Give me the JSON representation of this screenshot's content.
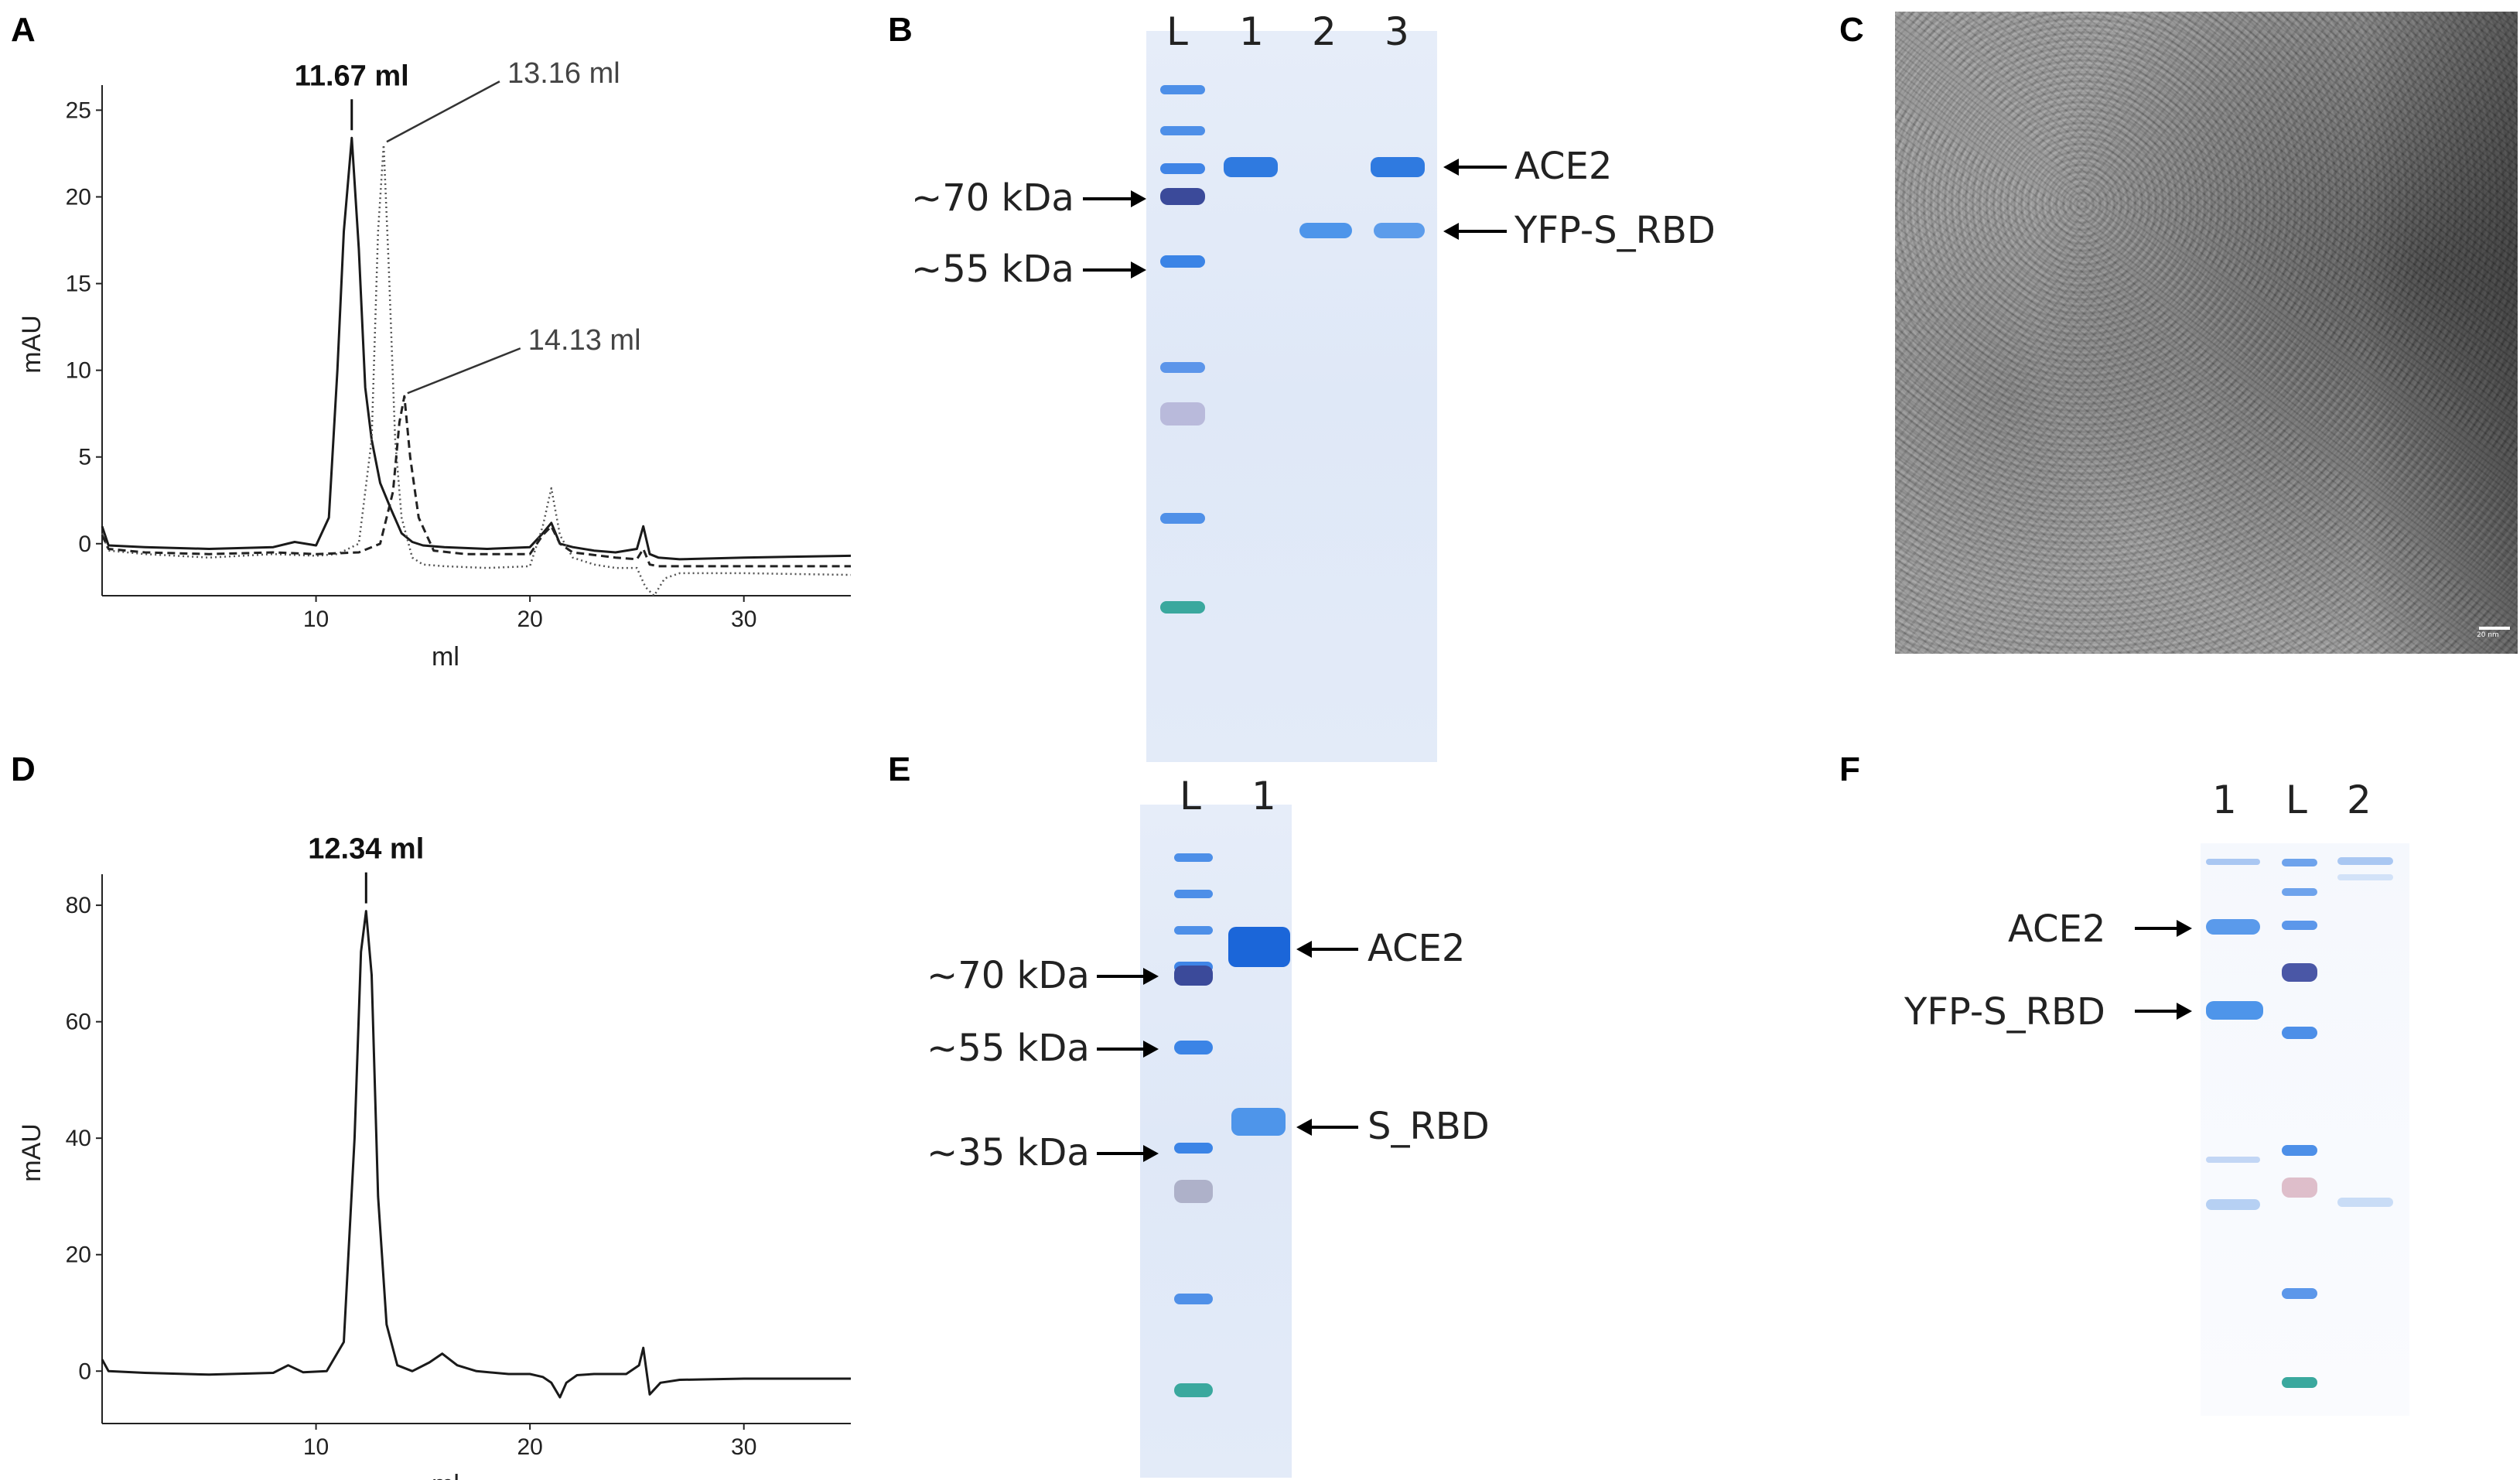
{
  "panels": {
    "A": {
      "letter": "A"
    },
    "B": {
      "letter": "B",
      "lanes": [
        "L",
        "1",
        "2",
        "3"
      ],
      "markers": [
        "~70 kDa",
        "~55 kDa"
      ],
      "bands": [
        "ACE2",
        "YFP-S_RBD"
      ]
    },
    "C": {
      "letter": "C",
      "scale_text": "20 nm"
    },
    "D": {
      "letter": "D"
    },
    "E": {
      "letter": "E",
      "lanes": [
        "L",
        "1"
      ],
      "markers": [
        "~70 kDa",
        "~55 kDa",
        "~35 kDa"
      ],
      "bands": [
        "ACE2",
        "S_RBD"
      ]
    },
    "F": {
      "letter": "F",
      "lanes": [
        "1",
        "L",
        "2"
      ],
      "bands": [
        "ACE2",
        "YFP-S_RBD"
      ]
    }
  },
  "chart_data": [
    {
      "id": "A",
      "type": "line",
      "xlabel": "ml",
      "ylabel": "mAU",
      "xlim": [
        0,
        35
      ],
      "ylim": [
        -3,
        26
      ],
      "xticks": [
        10,
        20,
        30
      ],
      "yticks": [
        0,
        5,
        10,
        15,
        20,
        25
      ],
      "annotations": [
        {
          "text": "11.67 ml",
          "x": 11.67,
          "y": 23.4,
          "style": "bold"
        },
        {
          "text": "13.16 ml",
          "x": 13.16,
          "y": 23.0,
          "style": "light"
        },
        {
          "text": "14.13 ml",
          "x": 14.13,
          "y": 8.5,
          "style": "light"
        }
      ],
      "series": [
        {
          "style": "solid",
          "x": [
            0,
            0.3,
            2,
            5,
            8,
            9,
            10,
            10.6,
            11,
            11.3,
            11.67,
            12,
            12.3,
            12.6,
            13,
            13.5,
            14,
            14.5,
            15,
            16,
            18,
            20,
            20.6,
            21,
            21.4,
            22,
            23,
            24,
            25,
            25.3,
            25.6,
            26,
            27,
            30,
            35
          ],
          "y": [
            1,
            -0.1,
            -0.2,
            -0.3,
            -0.2,
            0.1,
            -0.1,
            1.5,
            10,
            18,
            23.4,
            17,
            9,
            6,
            3.5,
            2,
            0.6,
            0.1,
            -0.1,
            -0.2,
            -0.3,
            -0.2,
            0.6,
            1.2,
            0,
            -0.2,
            -0.4,
            -0.5,
            -0.3,
            1,
            -0.6,
            -0.8,
            -0.9,
            -0.8,
            -0.7
          ]
        },
        {
          "style": "dotted",
          "x": [
            0,
            0.3,
            2,
            5,
            8,
            10,
            11,
            12,
            12.6,
            12.9,
            13.16,
            13.4,
            13.7,
            14,
            14.5,
            15,
            16,
            18,
            20,
            20.6,
            21,
            21.4,
            22,
            23,
            24,
            25,
            25.4,
            25.8,
            26.3,
            27,
            30,
            35
          ],
          "y": [
            0.6,
            -0.4,
            -0.6,
            -0.8,
            -0.6,
            -0.7,
            -0.6,
            0,
            6,
            18,
            23,
            16,
            6,
            1.5,
            -0.8,
            -1.2,
            -1.3,
            -1.4,
            -1.3,
            1,
            3.2,
            0.5,
            -0.8,
            -1.2,
            -1.4,
            -1.4,
            -2.5,
            -3.0,
            -2.0,
            -1.7,
            -1.7,
            -1.8
          ]
        },
        {
          "style": "dashed",
          "x": [
            0,
            0.3,
            2,
            5,
            8,
            10,
            12,
            13,
            13.6,
            13.9,
            14.13,
            14.4,
            14.8,
            15.5,
            17,
            20,
            20.6,
            21,
            21.4,
            22,
            24,
            25,
            25.3,
            25.6,
            26,
            27,
            30,
            35
          ],
          "y": [
            0.5,
            -0.3,
            -0.5,
            -0.6,
            -0.5,
            -0.6,
            -0.5,
            0,
            3,
            7,
            8.5,
            5,
            1.5,
            -0.4,
            -0.6,
            -0.6,
            0.5,
            1.0,
            0,
            -0.5,
            -0.8,
            -0.9,
            -0.3,
            -1.2,
            -1.3,
            -1.3,
            -1.3,
            -1.3
          ]
        }
      ]
    },
    {
      "id": "D",
      "type": "line",
      "xlabel": "ml",
      "ylabel": "mAU",
      "xlim": [
        0,
        35
      ],
      "ylim": [
        -9,
        84
      ],
      "xticks": [
        10,
        20,
        30
      ],
      "yticks": [
        0,
        20,
        40,
        60,
        80
      ],
      "annotations": [
        {
          "text": "12.34 ml",
          "x": 12.34,
          "y": 79,
          "style": "bold"
        }
      ],
      "series": [
        {
          "style": "solid",
          "x": [
            0,
            0.3,
            2,
            5,
            8,
            8.7,
            9.4,
            10.5,
            11.3,
            11.8,
            12.1,
            12.34,
            12.6,
            12.9,
            13.3,
            13.8,
            14.5,
            15.3,
            15.9,
            16.6,
            17.5,
            19,
            20,
            20.6,
            21,
            21.4,
            21.7,
            22.2,
            23,
            24.5,
            25.1,
            25.3,
            25.6,
            26.1,
            27,
            30,
            35
          ],
          "y": [
            2,
            0,
            -0.3,
            -0.6,
            -0.3,
            1,
            -0.2,
            0,
            5,
            40,
            72,
            79,
            68,
            30,
            8,
            1,
            0,
            1.5,
            3,
            1,
            0,
            -0.5,
            -0.5,
            -1,
            -2,
            -4.5,
            -2,
            -0.7,
            -0.5,
            -0.5,
            1,
            4,
            -4,
            -2,
            -1.5,
            -1.3,
            -1.3
          ]
        }
      ]
    }
  ]
}
